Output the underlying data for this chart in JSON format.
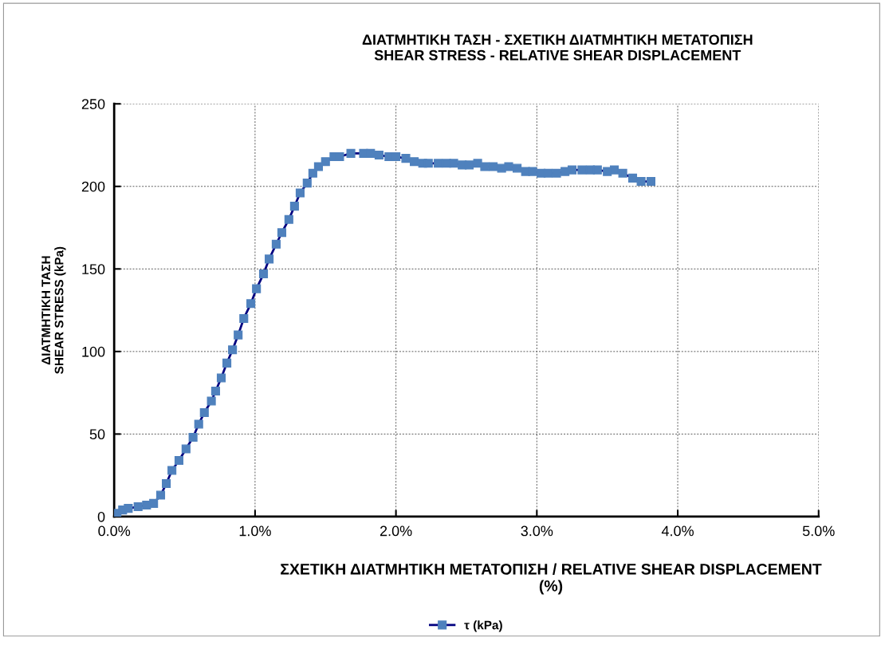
{
  "chart_data": {
    "type": "line",
    "title": "ΔΙΑΤΜΗΤΙΚΗ ΤΑΣΗ - ΣΧΕΤΙΚΗ ΔΙΑΤΜΗΤΙΚΗ ΜΕΤΑΤΟΠΙΣΗ\nSHEAR STRESS - RELATIVE SHEAR DISPLACEMENT",
    "xlabel": "ΣΧΕΤΙΚΗ ΔΙΑΤΜΗΤΙΚΗ ΜΕΤΑΤΟΠΙΣΗ / RELATIVE SHEAR DISPLACEMENT\n(%)",
    "ylabel": "ΔΙΑΤΜΗΤΙΚΗ ΤΑΣΗ\nSHEAR STRESS (kPa)",
    "xlim": [
      0,
      5
    ],
    "ylim": [
      0,
      250
    ],
    "xticks": [
      {
        "value": 0,
        "label": "0.0%"
      },
      {
        "value": 1,
        "label": "1.0%"
      },
      {
        "value": 2,
        "label": "2.0%"
      },
      {
        "value": 3,
        "label": "3.0%"
      },
      {
        "value": 4,
        "label": "4.0%"
      },
      {
        "value": 5,
        "label": "5.0%"
      }
    ],
    "yticks": [
      0,
      50,
      100,
      150,
      200,
      250
    ],
    "grid": true,
    "legend": "bottom",
    "marker": "square",
    "line_style": "solid",
    "series": [
      {
        "name": "τ (kPa)",
        "color": "#4f81bd",
        "x": [
          0.0,
          0.02,
          0.06,
          0.1,
          0.17,
          0.23,
          0.28,
          0.33,
          0.37,
          0.41,
          0.46,
          0.51,
          0.56,
          0.6,
          0.64,
          0.69,
          0.72,
          0.76,
          0.8,
          0.84,
          0.88,
          0.92,
          0.97,
          1.01,
          1.06,
          1.1,
          1.15,
          1.19,
          1.24,
          1.28,
          1.32,
          1.37,
          1.41,
          1.45,
          1.5,
          1.56,
          1.6,
          1.68,
          1.77,
          1.82,
          1.88,
          1.95,
          2.0,
          2.07,
          2.13,
          2.19,
          2.23,
          2.3,
          2.36,
          2.41,
          2.47,
          2.52,
          2.58,
          2.63,
          2.69,
          2.75,
          2.8,
          2.86,
          2.92,
          2.97,
          3.03,
          3.08,
          3.14,
          3.2,
          3.25,
          3.32,
          3.38,
          3.43,
          3.5,
          3.55,
          3.61,
          3.68,
          3.74,
          3.81
        ],
        "values": [
          1,
          2,
          4,
          5,
          6,
          7,
          8,
          13,
          20,
          28,
          34,
          41,
          48,
          56,
          63,
          70,
          76,
          84,
          93,
          101,
          110,
          120,
          129,
          138,
          147,
          156,
          165,
          172,
          180,
          188,
          196,
          202,
          208,
          212,
          215,
          218,
          218,
          220,
          220,
          220,
          219,
          218,
          218,
          217,
          215,
          214,
          214,
          214,
          214,
          214,
          213,
          213,
          214,
          212,
          212,
          211,
          212,
          211,
          209,
          209,
          208,
          208,
          208,
          209,
          210,
          210,
          210,
          210,
          209,
          210,
          208,
          205,
          203,
          203
        ]
      }
    ]
  }
}
